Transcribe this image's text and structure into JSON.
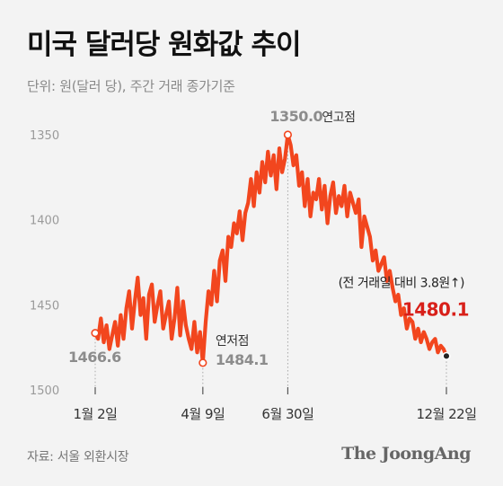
{
  "header": {
    "title": "미국 달러당 원화값 추이",
    "subtitle": "단위: 원(달러 당), 주간 거래 종가기준"
  },
  "footer": {
    "source": "자료: 서울 외환시장",
    "brand": "The JoongAng"
  },
  "colors": {
    "line": "#f2461e",
    "highlight": "#d8201a",
    "axis_text": "#9a9a9a",
    "annotation": "#8c8c8c",
    "background": "#f3f3f3"
  },
  "chart_data": {
    "type": "line",
    "title": "미국 달러당 원화값 추이",
    "ylabel": "",
    "y_axis": {
      "reversed": true,
      "ylim": [
        1350,
        1500
      ],
      "ticks": [
        "1350",
        "1400",
        "1450",
        "1500"
      ]
    },
    "x_ticks": [
      "1월 2일",
      "4월 9일",
      "6월 30일",
      "12월 22일"
    ],
    "grid": false,
    "series": [
      {
        "values": [
          1466.6,
          1470,
          1458,
          1472,
          1462,
          1476,
          1468,
          1460,
          1474,
          1456,
          1470,
          1452,
          1442,
          1464,
          1448,
          1434,
          1456,
          1446,
          1470,
          1444,
          1438,
          1460,
          1450,
          1442,
          1464,
          1456,
          1448,
          1470,
          1458,
          1440,
          1468,
          1448,
          1462,
          1470,
          1476,
          1460,
          1478,
          1466,
          1484.1,
          1460,
          1442,
          1450,
          1430,
          1448,
          1424,
          1418,
          1436,
          1410,
          1416,
          1402,
          1408,
          1395,
          1412,
          1396,
          1390,
          1376,
          1392,
          1372,
          1384,
          1366,
          1378,
          1360,
          1374,
          1362,
          1382,
          1358,
          1372,
          1364,
          1350.0,
          1356,
          1368,
          1362,
          1380,
          1372,
          1392,
          1376,
          1398,
          1384,
          1388,
          1376,
          1394,
          1380,
          1402,
          1386,
          1378,
          1396,
          1386,
          1392,
          1380,
          1398,
          1384,
          1390,
          1396,
          1388,
          1416,
          1398,
          1404,
          1410,
          1424,
          1418,
          1430,
          1426,
          1422,
          1436,
          1430,
          1440,
          1448,
          1444,
          1456,
          1452,
          1464,
          1458,
          1460,
          1470,
          1464,
          1472,
          1466,
          1470,
          1476,
          1472,
          1470,
          1478,
          1474,
          1476,
          1480.1
        ],
        "labels": [
          {
            "text": "1466.6",
            "index": 0,
            "value": 1466.6
          },
          {
            "text": "연저점",
            "index": 38,
            "value": 1484.1
          },
          {
            "text": "1484.1",
            "index": 38,
            "value": 1484.1
          },
          {
            "text": "1350.0",
            "index": 68,
            "value": 1350.0
          },
          {
            "text": "연고점",
            "index": 68,
            "value": 1350.0
          },
          {
            "text": "(전 거래일 대비 3.8원↑)",
            "index": 124,
            "value": 1480.1
          },
          {
            "text": "1480.1",
            "index": 124,
            "value": 1480.1
          }
        ]
      }
    ],
    "marker_indices": [
      0,
      38,
      68,
      124
    ],
    "x_tick_indices": [
      0,
      38,
      68,
      124
    ]
  }
}
